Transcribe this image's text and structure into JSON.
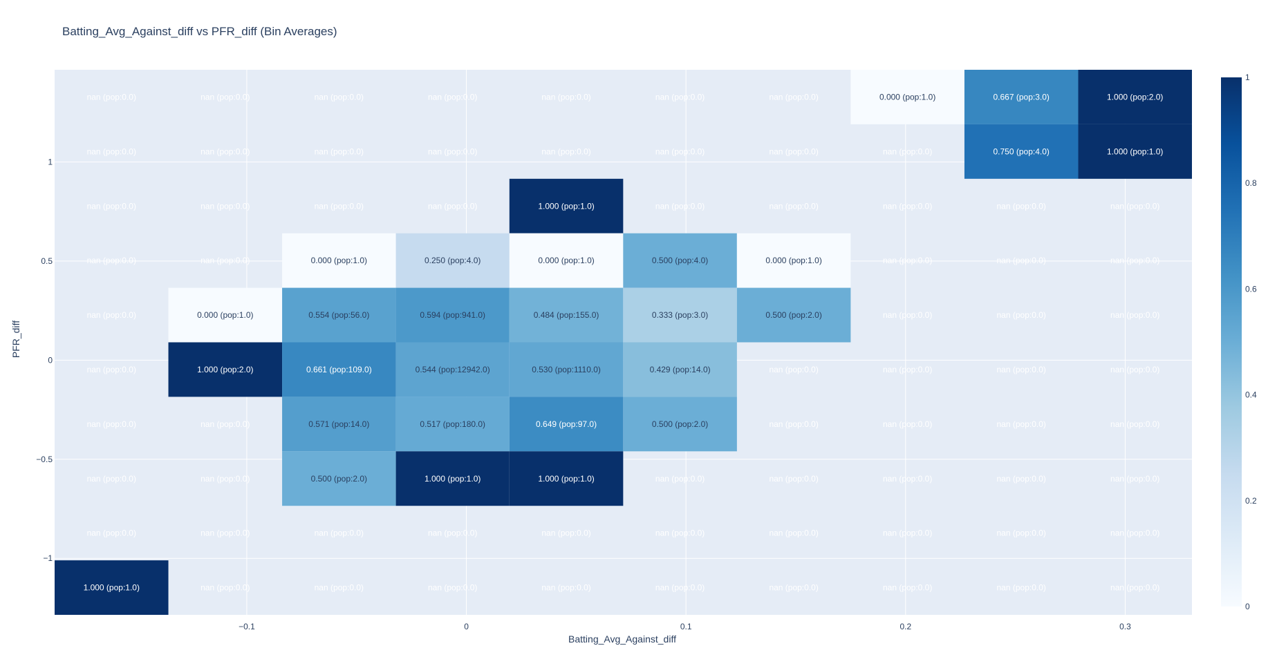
{
  "chart_data": {
    "type": "heatmap",
    "title": "Batting_Avg_Against_diff vs PFR_diff (Bin Averages)",
    "xlabel": "Batting_Avg_Against_diff",
    "ylabel": "PFR_diff",
    "x_bin_edges": [
      -0.1875,
      -0.1357,
      -0.0839,
      -0.0321,
      0.0196,
      0.0714,
      0.1232,
      0.175,
      0.2268,
      0.2786,
      0.3304
    ],
    "y_bin_edges": [
      -1.285,
      -1.01,
      -0.735,
      -0.46,
      -0.185,
      0.09,
      0.365,
      0.64,
      0.915,
      1.19,
      1.465
    ],
    "xlim": [
      -0.1875,
      0.3304
    ],
    "ylim": [
      -1.285,
      1.465
    ],
    "x_ticks": [
      -0.1,
      0,
      0.1,
      0.2,
      0.3
    ],
    "x_tick_labels": [
      "−0.1",
      "0",
      "0.1",
      "0.2",
      "0.3"
    ],
    "y_ticks": [
      -1,
      -0.5,
      0,
      0.5,
      1
    ],
    "y_tick_labels": [
      "−1",
      "−0.5",
      "0",
      "0.5",
      "1"
    ],
    "colorscale": "Blues",
    "zlim": [
      0,
      1
    ],
    "colorbar_ticks": [
      0,
      0.2,
      0.4,
      0.6,
      0.8,
      1
    ],
    "colorbar_tick_labels": [
      "0",
      "0.2",
      "0.4",
      "0.6",
      "0.8",
      "1"
    ],
    "grid": true,
    "rows_top_to_bottom": [
      [
        null,
        null,
        null,
        null,
        null,
        null,
        null,
        0.0,
        0.667,
        1.0
      ],
      [
        null,
        null,
        null,
        null,
        null,
        null,
        null,
        null,
        0.75,
        1.0
      ],
      [
        null,
        null,
        null,
        null,
        1.0,
        null,
        null,
        null,
        null,
        null
      ],
      [
        null,
        null,
        0.0,
        0.25,
        0.0,
        0.5,
        0.0,
        null,
        null,
        null
      ],
      [
        null,
        0.0,
        0.554,
        0.594,
        0.484,
        0.333,
        0.5,
        null,
        null,
        null
      ],
      [
        null,
        1.0,
        0.661,
        0.544,
        0.53,
        0.429,
        null,
        null,
        null,
        null
      ],
      [
        null,
        null,
        0.571,
        0.517,
        0.649,
        0.5,
        null,
        null,
        null,
        null
      ],
      [
        null,
        null,
        0.5,
        1.0,
        1.0,
        null,
        null,
        null,
        null,
        null
      ],
      [
        null,
        null,
        null,
        null,
        null,
        null,
        null,
        null,
        null,
        null
      ],
      [
        1.0,
        null,
        null,
        null,
        null,
        null,
        null,
        null,
        null,
        null
      ]
    ],
    "labels_top_to_bottom": [
      [
        "nan (pop:0.0)",
        "nan (pop:0.0)",
        "nan (pop:0.0)",
        "nan (pop:0.0)",
        "nan (pop:0.0)",
        "nan (pop:0.0)",
        "nan (pop:0.0)",
        "0.000 (pop:1.0)",
        "0.667 (pop:3.0)",
        "1.000 (pop:2.0)"
      ],
      [
        "nan (pop:0.0)",
        "nan (pop:0.0)",
        "nan (pop:0.0)",
        "nan (pop:0.0)",
        "nan (pop:0.0)",
        "nan (pop:0.0)",
        "nan (pop:0.0)",
        "nan (pop:0.0)",
        "0.750 (pop:4.0)",
        "1.000 (pop:1.0)"
      ],
      [
        "nan (pop:0.0)",
        "nan (pop:0.0)",
        "nan (pop:0.0)",
        "nan (pop:0.0)",
        "1.000 (pop:1.0)",
        "nan (pop:0.0)",
        "nan (pop:0.0)",
        "nan (pop:0.0)",
        "nan (pop:0.0)",
        "nan (pop:0.0)"
      ],
      [
        "nan (pop:0.0)",
        "nan (pop:0.0)",
        "0.000 (pop:1.0)",
        "0.250 (pop:4.0)",
        "0.000 (pop:1.0)",
        "0.500 (pop:4.0)",
        "0.000 (pop:1.0)",
        "nan (pop:0.0)",
        "nan (pop:0.0)",
        "nan (pop:0.0)"
      ],
      [
        "nan (pop:0.0)",
        "0.000 (pop:1.0)",
        "0.554 (pop:56.0)",
        "0.594 (pop:941.0)",
        "0.484 (pop:155.0)",
        "0.333 (pop:3.0)",
        "0.500 (pop:2.0)",
        "nan (pop:0.0)",
        "nan (pop:0.0)",
        "nan (pop:0.0)"
      ],
      [
        "nan (pop:0.0)",
        "1.000 (pop:2.0)",
        "0.661 (pop:109.0)",
        "0.544 (pop:12942.0)",
        "0.530 (pop:1110.0)",
        "0.429 (pop:14.0)",
        "nan (pop:0.0)",
        "nan (pop:0.0)",
        "nan (pop:0.0)",
        "nan (pop:0.0)"
      ],
      [
        "nan (pop:0.0)",
        "nan (pop:0.0)",
        "0.571 (pop:14.0)",
        "0.517 (pop:180.0)",
        "0.649 (pop:97.0)",
        "0.500 (pop:2.0)",
        "nan (pop:0.0)",
        "nan (pop:0.0)",
        "nan (pop:0.0)",
        "nan (pop:0.0)"
      ],
      [
        "nan (pop:0.0)",
        "nan (pop:0.0)",
        "0.500 (pop:2.0)",
        "1.000 (pop:1.0)",
        "1.000 (pop:1.0)",
        "nan (pop:0.0)",
        "nan (pop:0.0)",
        "nan (pop:0.0)",
        "nan (pop:0.0)",
        "nan (pop:0.0)"
      ],
      [
        "nan (pop:0.0)",
        "nan (pop:0.0)",
        "nan (pop:0.0)",
        "nan (pop:0.0)",
        "nan (pop:0.0)",
        "nan (pop:0.0)",
        "nan (pop:0.0)",
        "nan (pop:0.0)",
        "nan (pop:0.0)",
        "nan (pop:0.0)"
      ],
      [
        "1.000 (pop:1.0)",
        "nan (pop:0.0)",
        "nan (pop:0.0)",
        "nan (pop:0.0)",
        "nan (pop:0.0)",
        "nan (pop:0.0)",
        "nan (pop:0.0)",
        "nan (pop:0.0)",
        "nan (pop:0.0)",
        "nan (pop:0.0)"
      ]
    ]
  },
  "colors": {
    "plot_bg": "#e5ecf6",
    "grid": "#ffffff",
    "text": "#2a3f5f",
    "dark_label": "#2a3f5f",
    "light_label": "#ffffff"
  }
}
